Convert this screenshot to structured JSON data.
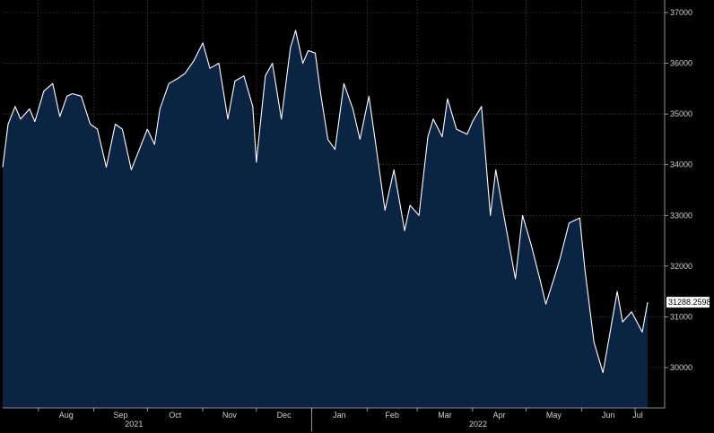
{
  "chart_data": {
    "type": "area",
    "y_axis_side": "right",
    "ylim": [
      29500,
      37000
    ],
    "y_ticks": [
      30000,
      31000,
      32000,
      33000,
      34000,
      35000,
      36000,
      37000
    ],
    "y_tick_labels": [
      "30000",
      "31000",
      "32000",
      "33000",
      "34000",
      "35000",
      "36000",
      "37000"
    ],
    "x_ticks": [
      "Aug",
      "Sep",
      "Oct",
      "Nov",
      "Dec",
      "Jan",
      "Feb",
      "Mar",
      "Apr",
      "May",
      "Jun",
      "Jul"
    ],
    "years": [
      "2021",
      "2022"
    ],
    "last_value_label": "31288.2598",
    "grid": true,
    "colors": {
      "background": "#000000",
      "fill": "#0b2444",
      "line": "#ffffff",
      "grid": "#555555",
      "label_box": "#ffffff"
    },
    "x": [
      "2021-07-12",
      "2021-07-15",
      "2021-07-19",
      "2021-07-22",
      "2021-07-27",
      "2021-07-30",
      "2021-08-04",
      "2021-08-09",
      "2021-08-13",
      "2021-08-17",
      "2021-08-20",
      "2021-08-25",
      "2021-08-30",
      "2021-09-03",
      "2021-09-08",
      "2021-09-13",
      "2021-09-17",
      "2021-09-22",
      "2021-09-27",
      "2021-10-01",
      "2021-10-05",
      "2021-10-08",
      "2021-10-13",
      "2021-10-18",
      "2021-10-22",
      "2021-10-27",
      "2021-11-01",
      "2021-11-05",
      "2021-11-10",
      "2021-11-15",
      "2021-11-19",
      "2021-11-24",
      "2021-11-29",
      "2021-12-01",
      "2021-12-06",
      "2021-12-10",
      "2021-12-15",
      "2021-12-20",
      "2021-12-23",
      "2021-12-27",
      "2021-12-30",
      "2022-01-03",
      "2022-01-06",
      "2022-01-10",
      "2022-01-14",
      "2022-01-19",
      "2022-01-24",
      "2022-01-28",
      "2022-02-02",
      "2022-02-07",
      "2022-02-11",
      "2022-02-16",
      "2022-02-22",
      "2022-02-25",
      "2022-03-02",
      "2022-03-07",
      "2022-03-10",
      "2022-03-15",
      "2022-03-18",
      "2022-03-23",
      "2022-03-29",
      "2022-04-01",
      "2022-04-06",
      "2022-04-11",
      "2022-04-14",
      "2022-04-19",
      "2022-04-25",
      "2022-04-29",
      "2022-05-04",
      "2022-05-09",
      "2022-05-12",
      "2022-05-17",
      "2022-05-20",
      "2022-05-25",
      "2022-05-31",
      "2022-06-03",
      "2022-06-08",
      "2022-06-13",
      "2022-06-16",
      "2022-06-21",
      "2022-06-24",
      "2022-06-29",
      "2022-07-05",
      "2022-07-08"
    ],
    "values": [
      33950,
      34800,
      35150,
      34900,
      35100,
      34850,
      35450,
      35600,
      34950,
      35350,
      35400,
      35350,
      34800,
      34700,
      33950,
      34800,
      34700,
      33900,
      34350,
      34700,
      34400,
      35100,
      35600,
      35700,
      35800,
      36050,
      36400,
      35900,
      36000,
      34900,
      35650,
      35750,
      35150,
      34050,
      35750,
      36000,
      34900,
      36300,
      36650,
      36000,
      36250,
      36200,
      35400,
      34500,
      34300,
      35600,
      35100,
      34500,
      35350,
      34100,
      33100,
      33900,
      32700,
      33200,
      33000,
      34550,
      34900,
      34550,
      35300,
      34700,
      34600,
      34850,
      35150,
      33000,
      33900,
      32900,
      31750,
      33000,
      32400,
      31700,
      31250,
      31800,
      32150,
      32850,
      32950,
      31900,
      30500,
      29900,
      30500,
      31500,
      30900,
      31100,
      30700,
      31288
    ]
  }
}
